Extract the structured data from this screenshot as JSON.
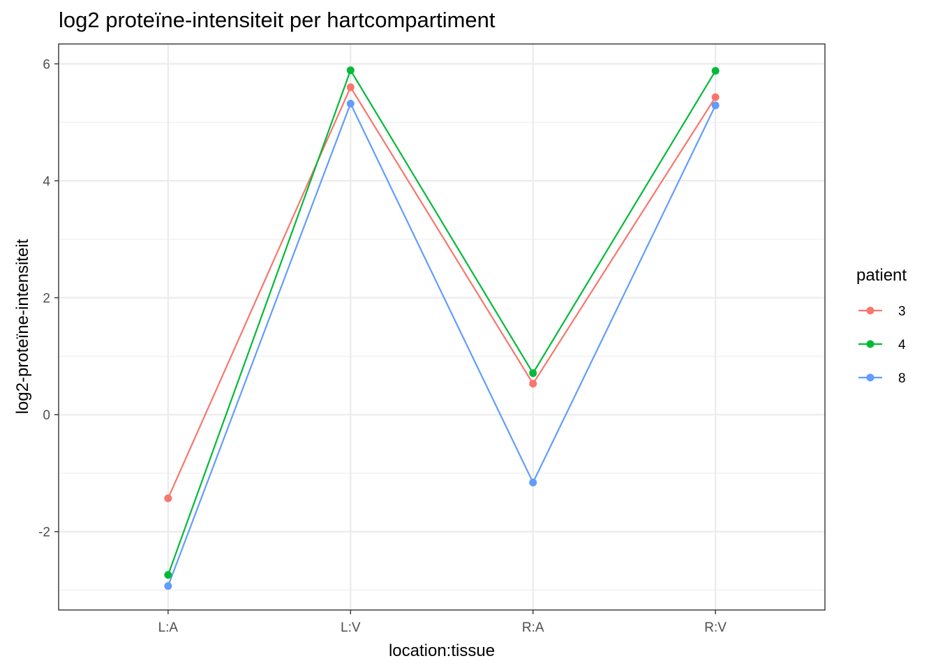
{
  "chart_data": {
    "type": "line",
    "title": "log2 proteïne-intensiteit per hartcompartiment",
    "xlabel": "location:tissue",
    "ylabel": "log2-proteïne-intensiteit",
    "categories": [
      "L:A",
      "L:V",
      "R:A",
      "R:V"
    ],
    "yticks": [
      -2,
      0,
      2,
      4,
      6
    ],
    "ylim": [
      -3.34,
      6.34
    ],
    "grid": true,
    "legend": {
      "title": "patient",
      "placement": "right"
    },
    "series": [
      {
        "name": "3",
        "color": "#F8766D",
        "values": [
          -1.43,
          5.6,
          0.53,
          5.43
        ]
      },
      {
        "name": "4",
        "color": "#00BA38",
        "values": [
          -2.74,
          5.89,
          0.71,
          5.88
        ]
      },
      {
        "name": "8",
        "color": "#619CFF",
        "values": [
          -2.93,
          5.32,
          -1.16,
          5.29
        ]
      }
    ]
  }
}
